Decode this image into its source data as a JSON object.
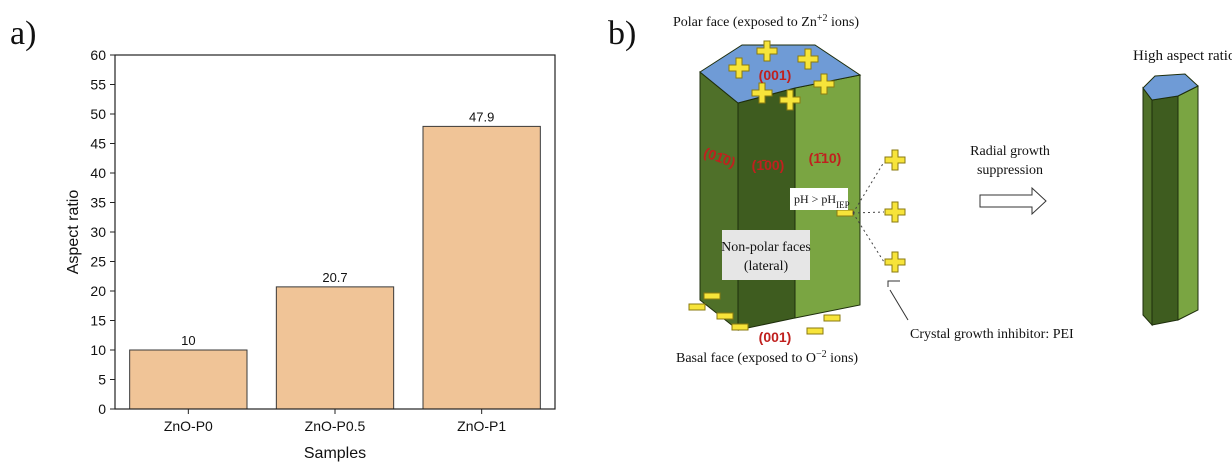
{
  "chart_data": {
    "type": "bar",
    "categories": [
      "ZnO-P0",
      "ZnO-P0.5",
      "ZnO-P1"
    ],
    "values": [
      10,
      20.7,
      47.9
    ],
    "color": "#f0c497",
    "edge_color": "#3a3a3a",
    "xlabel": "Samples",
    "ylabel": "Aspect ratio",
    "ylim": [
      0,
      60
    ],
    "yticks": [
      0,
      5,
      10,
      15,
      20,
      25,
      30,
      35,
      40,
      45,
      50,
      55,
      60
    ],
    "grid": false
  },
  "panel_labels": [
    "a)",
    "b)"
  ],
  "diagram": {
    "polar_face": {
      "text": "Polar face (exposed to Zn",
      "sup": "+2",
      "tail": " ions)"
    },
    "top_facet": "(001)",
    "lateral_facets": [
      "(01̄0)",
      "(1̄00)",
      "(1̄10)"
    ],
    "ph": {
      "text": "pH > pH",
      "sub": "IEP"
    },
    "nonpolar": [
      "Non-polar faces",
      "(lateral)"
    ],
    "bottom_facet": "(001)",
    "basal_face": {
      "text": "Basal face (exposed to O",
      "sup": "−2",
      "tail": " ions)"
    },
    "radial": [
      "Radial growth",
      "suppression"
    ],
    "inhibitor": "Crystal growth inhibitor: PEI",
    "high_aspect": "High aspect ratio"
  }
}
